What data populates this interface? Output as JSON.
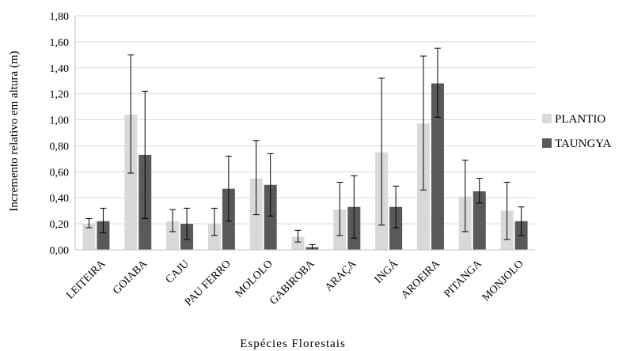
{
  "chart_data": {
    "type": "bar",
    "title": "",
    "xlabel": "Espécies Florestais",
    "ylabel": "Incremento relativo em altura (m)",
    "ylim": [
      0,
      1.8
    ],
    "yticks": [
      "0,00",
      "0,20",
      "0,40",
      "0,60",
      "0,80",
      "1,00",
      "1,20",
      "1,40",
      "1,60",
      "1,80"
    ],
    "ytick_values": [
      0,
      0.2,
      0.4,
      0.6,
      0.8,
      1.0,
      1.2,
      1.4,
      1.6,
      1.8
    ],
    "grid": true,
    "legend_position": "right",
    "categories": [
      "LEITEIRA",
      "GOIABA",
      "CAJU",
      "PAU FERRO",
      "MOLOLO",
      "GABIROBA",
      "ARAÇA",
      "INGÁ",
      "AROEIRA",
      "PITANGA",
      "MONJOLO"
    ],
    "series": [
      {
        "name": "PLANTIO",
        "color": "#d9d9d9",
        "values": [
          0.2,
          1.04,
          0.22,
          0.2,
          0.55,
          0.1,
          0.31,
          0.75,
          0.97,
          0.41,
          0.3
        ],
        "err_low": [
          0.17,
          0.59,
          0.14,
          0.11,
          0.27,
          0.06,
          0.11,
          0.19,
          0.46,
          0.14,
          0.08
        ],
        "err_high": [
          0.24,
          1.5,
          0.31,
          0.32,
          0.84,
          0.15,
          0.52,
          1.32,
          1.49,
          0.69,
          0.52
        ]
      },
      {
        "name": "TAUNGYA",
        "color": "#595959",
        "values": [
          0.22,
          0.73,
          0.2,
          0.47,
          0.5,
          0.02,
          0.33,
          0.33,
          1.28,
          0.45,
          0.22
        ],
        "err_low": [
          0.13,
          0.24,
          0.08,
          0.22,
          0.26,
          0.0,
          0.09,
          0.17,
          1.02,
          0.36,
          0.11
        ],
        "err_high": [
          0.32,
          1.22,
          0.32,
          0.72,
          0.74,
          0.04,
          0.57,
          0.49,
          1.55,
          0.55,
          0.33
        ]
      }
    ]
  }
}
